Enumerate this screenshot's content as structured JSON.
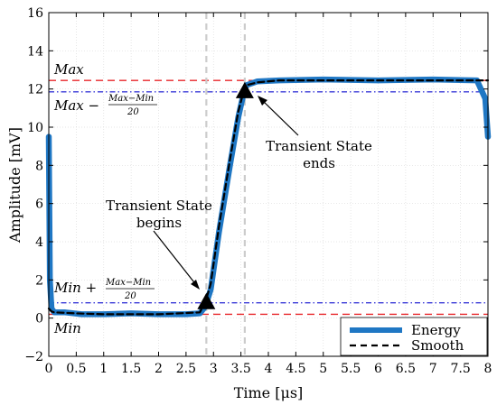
{
  "chart_data": {
    "type": "line",
    "xlabel": "Time [μs]",
    "ylabel": "Amplitude [mV]",
    "xlim": [
      0,
      8
    ],
    "ylim": [
      -2,
      16
    ],
    "xticks": [
      0,
      0.5,
      1,
      1.5,
      2,
      2.5,
      3,
      3.5,
      4,
      4.5,
      5,
      5.5,
      6,
      6.5,
      7,
      7.5,
      8
    ],
    "xtick_labels": [
      "0",
      "0.5",
      "1",
      "1.5",
      "2",
      "2.5",
      "3",
      "3.5",
      "4",
      "4.5",
      "5",
      "5.5",
      "6",
      "6.5",
      "7",
      "7.5",
      "8"
    ],
    "yticks": [
      -2,
      0,
      2,
      4,
      6,
      8,
      10,
      12,
      14,
      16
    ],
    "ytick_labels": [
      "−2",
      "0",
      "2",
      "4",
      "6",
      "8",
      "10",
      "12",
      "14",
      "16"
    ],
    "grid": true,
    "legend_position": "bottom-right",
    "series": [
      {
        "name": "Energy",
        "color": "#1f77c4",
        "x": [
          0,
          0.02,
          0.05,
          0.1,
          0.3,
          0.6,
          1.0,
          1.5,
          2.0,
          2.5,
          2.75,
          2.85,
          2.95,
          3.1,
          3.3,
          3.45,
          3.55,
          3.6,
          3.8,
          4.2,
          5.0,
          6.0,
          7.0,
          7.8,
          7.95,
          8.0
        ],
        "y": [
          9.5,
          2.0,
          0.5,
          0.3,
          0.3,
          0.2,
          0.2,
          0.25,
          0.2,
          0.2,
          0.25,
          0.6,
          1.5,
          4.5,
          8.0,
          10.5,
          11.8,
          12.2,
          12.4,
          12.45,
          12.5,
          12.45,
          12.5,
          12.45,
          11.5,
          9.5
        ]
      },
      {
        "name": "Smooth",
        "color": "#000000",
        "style": "dashed",
        "x": [
          0,
          0.05,
          0.1,
          0.5,
          1.0,
          2.0,
          2.75,
          2.85,
          2.95,
          3.1,
          3.3,
          3.45,
          3.55,
          3.6,
          3.8,
          4.2,
          5.0,
          6.0,
          7.0,
          8.0
        ],
        "y": [
          0.5,
          0.35,
          0.3,
          0.25,
          0.2,
          0.2,
          0.3,
          0.8,
          1.8,
          4.8,
          8.3,
          10.8,
          11.9,
          12.2,
          12.35,
          12.45,
          12.45,
          12.45,
          12.45,
          12.45
        ]
      }
    ],
    "reference_lines": [
      {
        "orientation": "horizontal",
        "y": 12.45,
        "color": "#e8262a",
        "style": "dashed"
      },
      {
        "orientation": "horizontal",
        "y": 0.2,
        "color": "#e8262a",
        "style": "dashed"
      },
      {
        "orientation": "horizontal",
        "y": 11.85,
        "color": "#3a3ad8",
        "style": "dashdot"
      },
      {
        "orientation": "horizontal",
        "y": 0.8,
        "color": "#3a3ad8",
        "style": "dashdot"
      },
      {
        "orientation": "vertical",
        "x": 2.87,
        "color": "#cccccc",
        "style": "dashed"
      },
      {
        "orientation": "vertical",
        "x": 3.57,
        "color": "#cccccc",
        "style": "dashed"
      }
    ],
    "markers": [
      {
        "x": 2.87,
        "y": 0.8,
        "shape": "triangle",
        "color": "#000000"
      },
      {
        "x": 3.57,
        "y": 11.85,
        "shape": "triangle",
        "color": "#000000"
      }
    ],
    "labels": {
      "max": "Max",
      "min": "Min",
      "max_minus_prefix": "Max −",
      "min_plus_prefix": "Min +",
      "frac_num": "Max−Min",
      "frac_den": "20"
    },
    "annotations": [
      {
        "id": "transient-begins",
        "lines": [
          "Transient State",
          "begins"
        ],
        "points_to": {
          "x": 2.87,
          "y": 0.8
        }
      },
      {
        "id": "transient-ends",
        "lines": [
          "Transient State",
          "ends"
        ],
        "points_to": {
          "x": 3.57,
          "y": 11.85
        }
      }
    ]
  }
}
